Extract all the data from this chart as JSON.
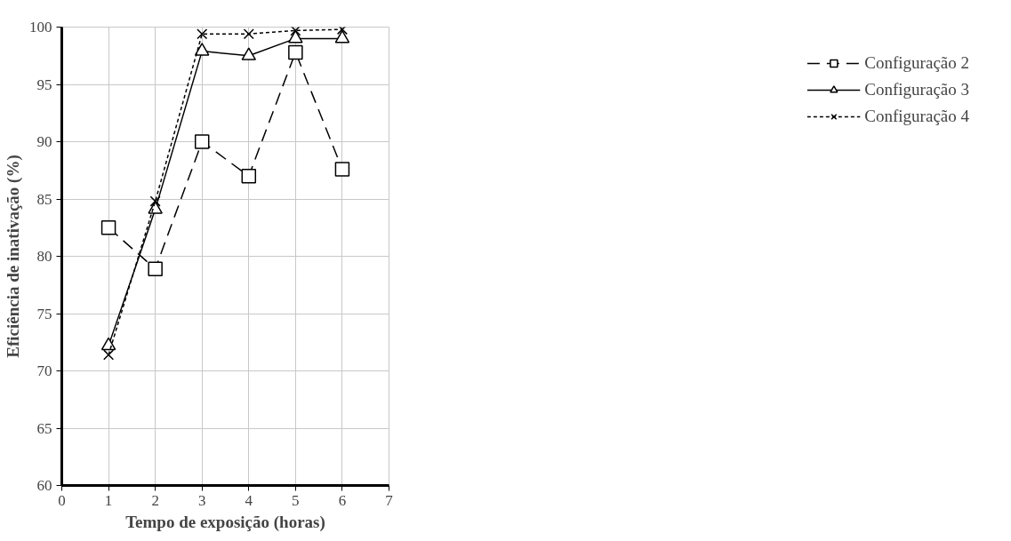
{
  "chart_data": {
    "type": "line",
    "xlabel": "Tempo de exposição (horas)",
    "ylabel": "Eficiência de inativação (%)",
    "x": [
      1,
      2,
      3,
      4,
      5,
      6
    ],
    "series": [
      {
        "name": "Configuração 2",
        "color": "#000000",
        "values": [
          82.5,
          78.9,
          90.0,
          87.0,
          97.8,
          87.6
        ],
        "marker": "square",
        "line_style": "dashed"
      },
      {
        "name": "Configuração 3",
        "color": "#000000",
        "values": [
          72.2,
          84.1,
          97.9,
          97.5,
          99.0,
          99.0
        ],
        "marker": "triangle",
        "line_style": "solid"
      },
      {
        "name": "Configuração 4",
        "color": "#000000",
        "values": [
          71.4,
          84.8,
          99.4,
          99.4,
          99.7,
          99.8
        ],
        "marker": "cross",
        "line_style": "dotted"
      }
    ],
    "xlim": [
      0,
      7
    ],
    "xticks": [
      0,
      1,
      2,
      3,
      4,
      5,
      6,
      7
    ],
    "ylim": [
      60,
      100
    ],
    "yticks": [
      60,
      65,
      70,
      75,
      80,
      85,
      90,
      95,
      100
    ],
    "grid": true,
    "legend": "right"
  }
}
